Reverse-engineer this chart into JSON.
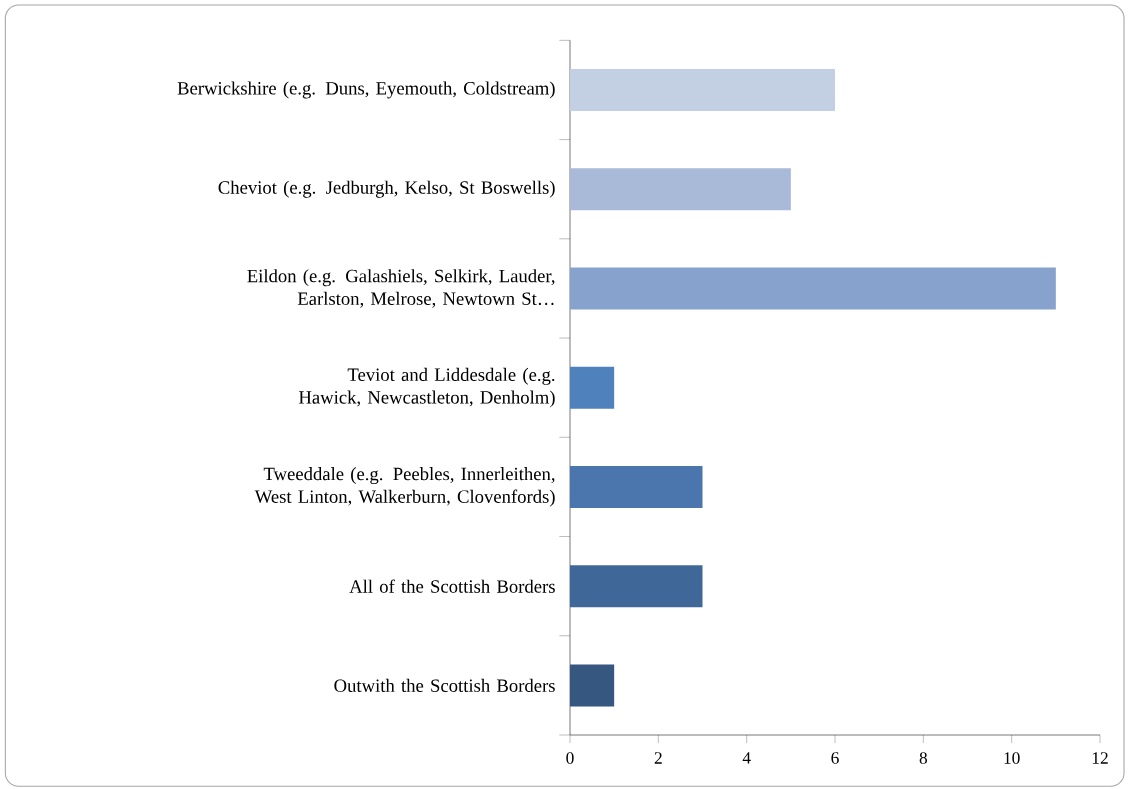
{
  "chart_data": {
    "type": "bar",
    "orientation": "horizontal",
    "categories": [
      "Berwickshire (e.g. Duns, Eyemouth, Coldstream)",
      "Cheviot (e.g. Jedburgh, Kelso, St Boswells)",
      "Eildon (e.g. Galashiels, Selkirk, Lauder, Earlston, Melrose, Newtown St…",
      "Teviot and Liddesdale (e.g. Hawick, Newcastleton, Denholm)",
      "Tweeddale (e.g. Peebles, Innerleithen, West Linton, Walkerburn, Clovenfords)",
      "All of the Scottish Borders",
      "Outwith the Scottish Borders"
    ],
    "values": [
      6,
      5,
      11,
      1,
      3,
      3,
      1
    ],
    "colors": [
      "#c3cfe2",
      "#a9b9d8",
      "#87a3cd",
      "#4f81bd",
      "#4a76ad",
      "#3f6898",
      "#355780"
    ],
    "xlim": [
      0,
      12
    ],
    "xticks": [
      0,
      2,
      4,
      6,
      8,
      10,
      12
    ]
  }
}
